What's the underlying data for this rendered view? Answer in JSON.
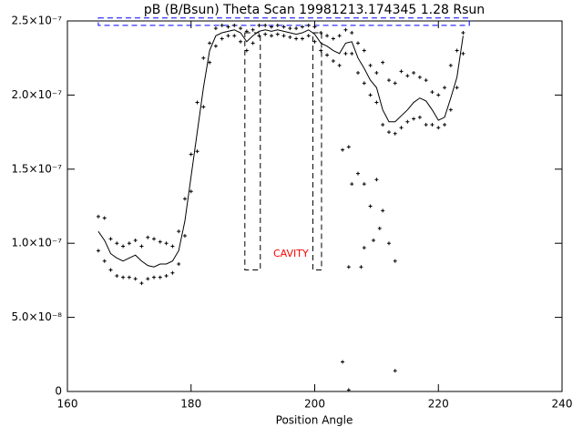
{
  "chart_data": {
    "type": "line",
    "title": "pB (B/Bsun) Theta Scan 19981213.174345 1.28 Rsun",
    "x_label": "Position Angle",
    "annotation": "CAVITY",
    "xlim": [
      160,
      240
    ],
    "xticks": [
      160,
      180,
      200,
      220,
      240
    ],
    "ylim": [
      0,
      2.5e-07
    ],
    "yticks": [
      0,
      {
        "value": 5e-08,
        "label": "5.0×10⁻⁸"
      },
      {
        "value": 1e-07,
        "label": "1.0×10⁻⁷"
      },
      {
        "value": 1.5e-07,
        "label": "1.5×10⁻⁷"
      },
      {
        "value": 2e-07,
        "label": "2.0×10⁻⁷"
      },
      {
        "value": 2.5e-07,
        "label": "2.5×10⁻⁷"
      }
    ],
    "color": "#000000",
    "x": [
      165,
      166,
      167,
      168,
      169,
      170,
      171,
      172,
      173,
      174,
      175,
      176,
      177,
      178,
      179,
      180,
      181,
      182,
      183,
      184,
      185,
      186,
      187,
      188,
      189,
      190,
      191,
      192,
      193,
      194,
      195,
      196,
      197,
      198,
      199,
      200,
      201,
      202,
      203,
      204,
      205,
      206,
      207,
      208,
      209,
      210,
      211,
      212,
      213,
      214,
      215,
      216,
      217,
      218,
      219,
      220,
      221,
      222,
      223,
      224
    ],
    "series": [
      {
        "style": "line",
        "values": [
          1.08e-07,
          1.02e-07,
          9.3e-08,
          9e-08,
          8.8e-08,
          9e-08,
          9.2e-08,
          8.8e-08,
          8.5e-08,
          8.4e-08,
          8.6e-08,
          8.6e-08,
          8.8e-08,
          9.5e-08,
          1.15e-07,
          1.45e-07,
          1.75e-07,
          2.05e-07,
          2.3e-07,
          2.4e-07,
          2.42e-07,
          2.43e-07,
          2.44e-07,
          2.42e-07,
          2.36e-07,
          2.4e-07,
          2.43e-07,
          2.44e-07,
          2.43e-07,
          2.44e-07,
          2.43e-07,
          2.42e-07,
          2.41e-07,
          2.42e-07,
          2.44e-07,
          2.41e-07,
          2.35e-07,
          2.33e-07,
          2.3e-07,
          2.28e-07,
          2.35e-07,
          2.36e-07,
          2.25e-07,
          2.18e-07,
          2.1e-07,
          2.05e-07,
          1.9e-07,
          1.82e-07,
          1.82e-07,
          1.86e-07,
          1.9e-07,
          1.95e-07,
          1.98e-07,
          1.96e-07,
          1.9e-07,
          1.83e-07,
          1.85e-07,
          1.98e-07,
          2.12e-07,
          2.4e-07
        ]
      },
      {
        "style": "points",
        "values": [
          1.18e-07,
          1.17e-07,
          1.03e-07,
          1e-07,
          9.8e-08,
          1e-07,
          1.02e-07,
          9.8e-08,
          1.04e-07,
          1.03e-07,
          1.01e-07,
          1e-07,
          9.8e-08,
          1.08e-07,
          1.3e-07,
          1.6e-07,
          1.95e-07,
          2.25e-07,
          2.35e-07,
          2.45e-07,
          2.47e-07,
          2.46e-07,
          2.47e-07,
          2.45e-07,
          2.43e-07,
          2.44e-07,
          2.47e-07,
          2.47e-07,
          2.46e-07,
          2.47e-07,
          2.46e-07,
          2.45e-07,
          2.45e-07,
          2.46e-07,
          2.47e-07,
          2.46e-07,
          2.42e-07,
          2.4e-07,
          2.38e-07,
          2.4e-07,
          2.44e-07,
          2.42e-07,
          2.35e-07,
          2.3e-07,
          2.2e-07,
          2.15e-07,
          2.22e-07,
          2.1e-07,
          2.08e-07,
          2.16e-07,
          2.13e-07,
          2.15e-07,
          2.12e-07,
          2.1e-07,
          2.02e-07,
          2e-07,
          2.05e-07,
          2.2e-07,
          2.3e-07,
          2.42e-07
        ]
      },
      {
        "style": "points",
        "values": [
          9.5e-08,
          8.8e-08,
          8.2e-08,
          7.8e-08,
          7.7e-08,
          7.7e-08,
          7.6e-08,
          7.3e-08,
          7.6e-08,
          7.7e-08,
          7.7e-08,
          7.8e-08,
          8e-08,
          8.6e-08,
          1.05e-07,
          1.35e-07,
          1.62e-07,
          1.92e-07,
          2.22e-07,
          2.33e-07,
          2.38e-07,
          2.4e-07,
          2.4e-07,
          2.36e-07,
          2.3e-07,
          2.35e-07,
          2.4e-07,
          2.41e-07,
          2.4e-07,
          2.41e-07,
          2.4e-07,
          2.39e-07,
          2.38e-07,
          2.38e-07,
          2.4e-07,
          2.36e-07,
          2.3e-07,
          2.27e-07,
          2.23e-07,
          2.2e-07,
          2.28e-07,
          2.28e-07,
          2.15e-07,
          2.08e-07,
          2e-07,
          1.95e-07,
          1.8e-07,
          1.75e-07,
          1.74e-07,
          1.78e-07,
          1.82e-07,
          1.84e-07,
          1.85e-07,
          1.8e-07,
          1.8e-07,
          1.78e-07,
          1.8e-07,
          1.9e-07,
          2.05e-07,
          2.28e-07
        ]
      },
      {
        "style": "points",
        "x": [
          204.5,
          205.5,
          206,
          207,
          208,
          209,
          210,
          211,
          209.5,
          210.5,
          208,
          212,
          213,
          205.5,
          207.5,
          204.5,
          205.5,
          213
        ],
        "values": [
          1.63e-07,
          1.65e-07,
          1.4e-07,
          1.47e-07,
          1.4e-07,
          1.25e-07,
          1.43e-07,
          1.22e-07,
          1.02e-07,
          1.1e-07,
          9.7e-08,
          1e-07,
          8.8e-08,
          8.4e-08,
          8.4e-08,
          2e-08,
          1e-09,
          1.4e-08
        ]
      }
    ],
    "boxes": [
      {
        "xlim": [
          165,
          225
        ],
        "ylim": [
          2.47e-07,
          2.52e-07
        ],
        "color": "#0000ff"
      },
      {
        "xlim": [
          188.7,
          191.2
        ],
        "ylim": [
          8.2e-08,
          2.42e-07
        ],
        "color": "#000000"
      },
      {
        "xlim": [
          199.7,
          201.1
        ],
        "ylim": [
          8.2e-08,
          2.42e-07
        ],
        "color": "#000000"
      }
    ]
  }
}
